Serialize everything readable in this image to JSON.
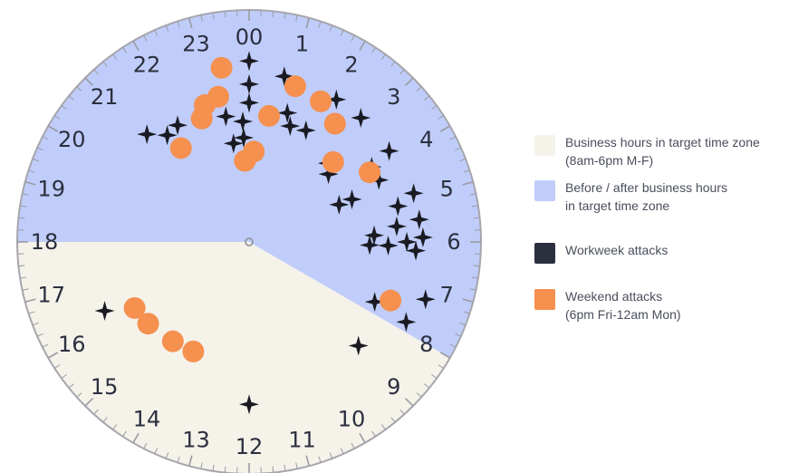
{
  "chart_data": {
    "type": "polar-scatter",
    "hour_labels": [
      "00",
      "1",
      "2",
      "3",
      "4",
      "5",
      "6",
      "7",
      "8",
      "9",
      "10",
      "11",
      "12",
      "13",
      "14",
      "15",
      "16",
      "17",
      "18",
      "19",
      "20",
      "21",
      "22",
      "23"
    ],
    "regions": [
      {
        "name": "business_hours",
        "legend": "Business hours in target time zone\n(8am-6pm M-F)",
        "start_hour": 8,
        "end_hour": 18,
        "color": "#f5f2ea"
      },
      {
        "name": "off_hours",
        "legend": "Before / after business hours\nin target time zone",
        "start_hour": 18,
        "end_hour": 32,
        "color": "#c0cdfa"
      }
    ],
    "series": [
      {
        "name": "Workweek attacks",
        "marker": "star",
        "color": "#1a1b22",
        "points": [
          {
            "hour": 0.0,
            "r": 0.78
          },
          {
            "hour": 0.0,
            "r": 0.68
          },
          {
            "hour": 0.0,
            "r": 0.6
          },
          {
            "hour": 23.8,
            "r": 0.52
          },
          {
            "hour": 23.3,
            "r": 0.55
          },
          {
            "hour": 23.4,
            "r": 0.43
          },
          {
            "hour": 23.8,
            "r": 0.45
          },
          {
            "hour": 23.9,
            "r": 0.38
          },
          {
            "hour": 0.8,
            "r": 0.73
          },
          {
            "hour": 1.1,
            "r": 0.58
          },
          {
            "hour": 1.3,
            "r": 0.53
          },
          {
            "hour": 1.8,
            "r": 0.54
          },
          {
            "hour": 2.1,
            "r": 0.72
          },
          {
            "hour": 2.8,
            "r": 0.72
          },
          {
            "hour": 3.0,
            "r": 0.48
          },
          {
            "hour": 3.3,
            "r": 0.45
          },
          {
            "hour": 3.8,
            "r": 0.72
          },
          {
            "hour": 3.9,
            "r": 0.62
          },
          {
            "hour": 4.3,
            "r": 0.62
          },
          {
            "hour": 4.5,
            "r": 0.42
          },
          {
            "hour": 4.5,
            "r": 0.48
          },
          {
            "hour": 4.9,
            "r": 0.74
          },
          {
            "hour": 5.1,
            "r": 0.66
          },
          {
            "hour": 5.5,
            "r": 0.74
          },
          {
            "hour": 5.6,
            "r": 0.64
          },
          {
            "hour": 5.8,
            "r": 0.54
          },
          {
            "hour": 5.9,
            "r": 0.75
          },
          {
            "hour": 6.0,
            "r": 0.68
          },
          {
            "hour": 6.1,
            "r": 0.6
          },
          {
            "hour": 6.1,
            "r": 0.52
          },
          {
            "hour": 6.2,
            "r": 0.72
          },
          {
            "hour": 7.2,
            "r": 0.8
          },
          {
            "hour": 7.8,
            "r": 0.76
          },
          {
            "hour": 7.7,
            "r": 0.6
          },
          {
            "hour": 8.9,
            "r": 0.65
          },
          {
            "hour": 12.0,
            "r": 0.7
          },
          {
            "hour": 16.3,
            "r": 0.69
          },
          {
            "hour": 21.1,
            "r": 0.64
          },
          {
            "hour": 21.5,
            "r": 0.58
          },
          {
            "hour": 21.9,
            "r": 0.59
          }
        ]
      },
      {
        "name": "Weekend attacks",
        "marker": "circle",
        "color": "#f5904f",
        "legend": "Weekend attacks\n(6pm Fri-12am Mon)",
        "points": [
          {
            "hour": 23.4,
            "r": 0.76
          },
          {
            "hour": 23.2,
            "r": 0.64
          },
          {
            "hour": 22.6,
            "r": 0.57
          },
          {
            "hour": 22.8,
            "r": 0.62
          },
          {
            "hour": 21.6,
            "r": 0.5
          },
          {
            "hour": 0.2,
            "r": 0.39
          },
          {
            "hour": 0.6,
            "r": 0.55
          },
          {
            "hour": 1.1,
            "r": 0.7
          },
          {
            "hour": 1.8,
            "r": 0.68
          },
          {
            "hour": 2.4,
            "r": 0.63
          },
          {
            "hour": 3.1,
            "r": 0.5
          },
          {
            "hour": 4.0,
            "r": 0.6
          },
          {
            "hour": 7.5,
            "r": 0.66
          },
          {
            "hour": 16.0,
            "r": 0.57
          },
          {
            "hour": 15.4,
            "r": 0.56
          },
          {
            "hour": 14.5,
            "r": 0.54
          },
          {
            "hour": 13.8,
            "r": 0.53
          },
          {
            "hour": 23.8,
            "r": 0.35
          }
        ]
      }
    ],
    "legend_position": "right",
    "grid": false
  },
  "legend": {
    "items": [
      {
        "text": "Business hours in target time zone\n(8am-6pm M-F)",
        "color": "#f5f2ea"
      },
      {
        "text": "Before / after business hours\nin target time zone",
        "color": "#c0cdfa"
      },
      {
        "text": "Workweek attacks",
        "color": "#2b2f3e"
      },
      {
        "text": "Weekend attacks\n(6pm Fri-12am Mon)",
        "color": "#f5904f"
      }
    ]
  },
  "colors": {
    "rim": "#a6a6ad",
    "ticks": "#9b9ba3",
    "labels": "#2b2f3e",
    "center": "#8c8c92"
  }
}
